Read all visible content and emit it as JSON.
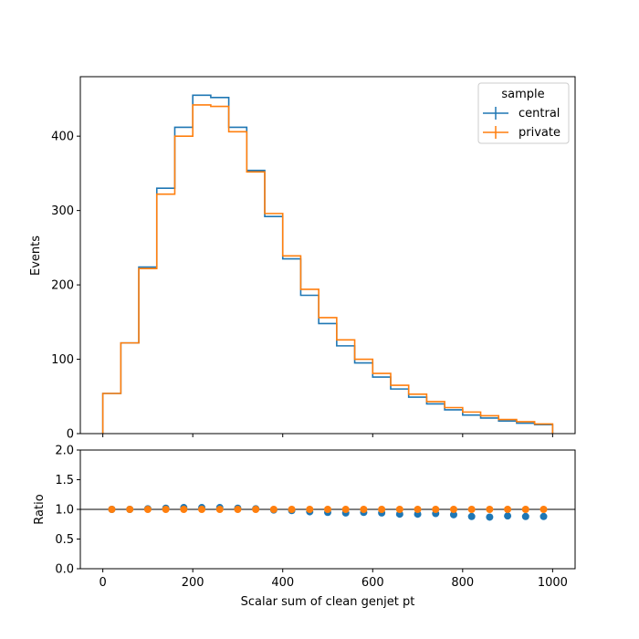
{
  "chart_data": {
    "type": "histogram",
    "xlabel": "Scalar sum of clean genjet pt",
    "xlim": [
      -50,
      1050
    ],
    "x_ticks": [
      0,
      200,
      400,
      600,
      800,
      1000
    ],
    "bin_edges": [
      0,
      40,
      80,
      120,
      160,
      200,
      240,
      280,
      320,
      360,
      400,
      440,
      480,
      520,
      560,
      600,
      640,
      680,
      720,
      760,
      800,
      840,
      880,
      920,
      960,
      1000
    ],
    "main": {
      "ylabel": "Events",
      "ylim": [
        0,
        480
      ],
      "y_ticks": [
        0,
        100,
        200,
        300,
        400
      ],
      "series": [
        {
          "name": "central",
          "color": "#1f77b4",
          "values": [
            54,
            122,
            224,
            330,
            412,
            455,
            452,
            412,
            354,
            292,
            235,
            186,
            148,
            118,
            95,
            76,
            60,
            49,
            40,
            32,
            25,
            21,
            17,
            14,
            12
          ]
        },
        {
          "name": "private",
          "color": "#ff7f0e",
          "values": [
            54,
            122,
            222,
            322,
            400,
            442,
            440,
            406,
            352,
            296,
            239,
            194,
            156,
            126,
            100,
            81,
            65,
            53,
            43,
            35,
            29,
            24,
            19,
            16,
            13
          ]
        }
      ],
      "legend": {
        "title": "sample",
        "position": "top-right"
      }
    },
    "ratio": {
      "ylabel": "Ratio",
      "ylim": [
        0,
        2
      ],
      "y_ticks": [
        "0.0",
        "0.5",
        "1.0",
        "1.5",
        "2.0"
      ],
      "reference_line": 1.0,
      "series": [
        {
          "name": "central",
          "color": "#1f77b4",
          "values": [
            1.0,
            1.0,
            1.01,
            1.02,
            1.03,
            1.03,
            1.03,
            1.02,
            1.01,
            0.99,
            0.98,
            0.96,
            0.95,
            0.94,
            0.95,
            0.94,
            0.92,
            0.92,
            0.93,
            0.91,
            0.88,
            0.87,
            0.89,
            0.88,
            0.88
          ]
        },
        {
          "name": "private",
          "color": "#ff7f0e",
          "values": [
            1.0,
            1.0,
            1.0,
            1.0,
            1.0,
            1.0,
            1.0,
            1.0,
            1.0,
            1.0,
            1.0,
            1.0,
            1.0,
            1.0,
            1.0,
            1.0,
            1.0,
            1.0,
            1.0,
            1.0,
            1.0,
            1.0,
            1.0,
            1.0,
            1.0
          ]
        }
      ]
    }
  }
}
